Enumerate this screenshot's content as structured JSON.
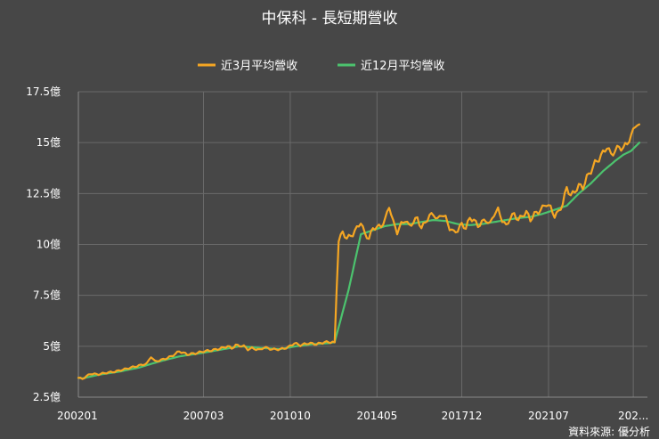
{
  "chart_data": {
    "type": "line",
    "title": "中保科 - 長短期營收",
    "source": "資料來源: 優分析",
    "legend_position": "top-center",
    "grid": true,
    "colors": {
      "background": "#474747",
      "grid": "#6a6a6a",
      "axis": "#8a8a8a"
    },
    "x_ticks": [
      "200201",
      "200703",
      "201010",
      "201405",
      "201712",
      "202107",
      "202..."
    ],
    "x_tick_index": [
      0,
      62,
      105,
      148,
      190,
      233,
      275
    ],
    "y_ticks": [
      "2.5億",
      "5億",
      "7.5億",
      "10億",
      "12.5億",
      "15億",
      "17.5億"
    ],
    "y_tick_values": [
      2.5,
      5,
      7.5,
      10,
      12.5,
      15,
      17.5
    ],
    "ylim": [
      2.5,
      17.5
    ],
    "x_count": 283,
    "series": [
      {
        "name": "近3月平均營收",
        "color": "#f5a623",
        "anchors": [
          [
            0,
            3.45
          ],
          [
            2,
            3.4
          ],
          [
            6,
            3.65
          ],
          [
            10,
            3.62
          ],
          [
            14,
            3.7
          ],
          [
            18,
            3.75
          ],
          [
            22,
            3.85
          ],
          [
            26,
            3.95
          ],
          [
            30,
            4.05
          ],
          [
            34,
            4.15
          ],
          [
            36,
            4.5
          ],
          [
            38,
            4.25
          ],
          [
            42,
            4.35
          ],
          [
            46,
            4.5
          ],
          [
            50,
            4.75
          ],
          [
            54,
            4.6
          ],
          [
            58,
            4.65
          ],
          [
            62,
            4.75
          ],
          [
            66,
            4.8
          ],
          [
            70,
            4.88
          ],
          [
            74,
            5.0
          ],
          [
            76,
            4.9
          ],
          [
            78,
            5.05
          ],
          [
            82,
            5.0
          ],
          [
            84,
            4.85
          ],
          [
            86,
            4.9
          ],
          [
            90,
            4.82
          ],
          [
            92,
            4.95
          ],
          [
            96,
            4.85
          ],
          [
            100,
            4.85
          ],
          [
            104,
            4.95
          ],
          [
            107,
            5.15
          ],
          [
            110,
            5.05
          ],
          [
            114,
            5.15
          ],
          [
            118,
            5.1
          ],
          [
            122,
            5.2
          ],
          [
            126,
            5.2
          ],
          [
            127,
            5.15
          ],
          [
            128,
            7.8
          ],
          [
            129,
            10.2
          ],
          [
            131,
            10.6
          ],
          [
            133,
            10.3
          ],
          [
            136,
            10.5
          ],
          [
            138,
            10.8
          ],
          [
            140,
            11.1
          ],
          [
            142,
            10.5
          ],
          [
            144,
            10.3
          ],
          [
            146,
            10.8
          ],
          [
            150,
            10.9
          ],
          [
            152,
            11.2
          ],
          [
            154,
            11.9
          ],
          [
            156,
            11.1
          ],
          [
            158,
            10.6
          ],
          [
            160,
            11.0
          ],
          [
            162,
            11.2
          ],
          [
            164,
            10.9
          ],
          [
            166,
            11.1
          ],
          [
            168,
            11.3
          ],
          [
            170,
            10.8
          ],
          [
            172,
            11.1
          ],
          [
            174,
            11.4
          ],
          [
            176,
            11.5
          ],
          [
            178,
            11.2
          ],
          [
            180,
            11.5
          ],
          [
            182,
            11.3
          ],
          [
            184,
            10.8
          ],
          [
            186,
            10.6
          ],
          [
            188,
            10.7
          ],
          [
            190,
            11.0
          ],
          [
            192,
            10.8
          ],
          [
            194,
            11.3
          ],
          [
            196,
            11.2
          ],
          [
            198,
            10.9
          ],
          [
            200,
            11.1
          ],
          [
            202,
            11.2
          ],
          [
            204,
            11.0
          ],
          [
            206,
            11.5
          ],
          [
            208,
            11.7
          ],
          [
            210,
            11.2
          ],
          [
            212,
            10.9
          ],
          [
            214,
            11.3
          ],
          [
            216,
            11.5
          ],
          [
            218,
            11.2
          ],
          [
            220,
            11.4
          ],
          [
            222,
            11.6
          ],
          [
            224,
            11.2
          ],
          [
            226,
            11.5
          ],
          [
            228,
            11.6
          ],
          [
            230,
            11.8
          ],
          [
            232,
            12.0
          ],
          [
            234,
            11.8
          ],
          [
            236,
            11.4
          ],
          [
            238,
            11.6
          ],
          [
            240,
            12.0
          ],
          [
            242,
            12.8
          ],
          [
            244,
            12.4
          ],
          [
            246,
            12.6
          ],
          [
            248,
            12.9
          ],
          [
            250,
            12.8
          ],
          [
            252,
            13.3
          ],
          [
            254,
            13.6
          ],
          [
            256,
            14.0
          ],
          [
            258,
            14.2
          ],
          [
            260,
            14.5
          ],
          [
            262,
            14.8
          ],
          [
            264,
            14.4
          ],
          [
            266,
            14.6
          ],
          [
            268,
            14.8
          ],
          [
            270,
            14.7
          ],
          [
            272,
            15.0
          ],
          [
            274,
            15.3
          ],
          [
            276,
            15.9
          ],
          [
            278,
            15.9
          ]
        ]
      },
      {
        "name": "近12月平均營收",
        "color": "#4cc36e",
        "anchors": [
          [
            0,
            3.45
          ],
          [
            2,
            3.42
          ],
          [
            10,
            3.6
          ],
          [
            20,
            3.75
          ],
          [
            30,
            3.95
          ],
          [
            40,
            4.25
          ],
          [
            50,
            4.5
          ],
          [
            60,
            4.65
          ],
          [
            70,
            4.82
          ],
          [
            80,
            5.0
          ],
          [
            90,
            4.92
          ],
          [
            100,
            4.86
          ],
          [
            108,
            5.0
          ],
          [
            116,
            5.1
          ],
          [
            124,
            5.15
          ],
          [
            127,
            5.2
          ],
          [
            134,
            7.8
          ],
          [
            140,
            10.5
          ],
          [
            146,
            10.7
          ],
          [
            152,
            10.9
          ],
          [
            158,
            11.0
          ],
          [
            164,
            11.0
          ],
          [
            170,
            11.1
          ],
          [
            176,
            11.2
          ],
          [
            182,
            11.15
          ],
          [
            188,
            11.0
          ],
          [
            194,
            10.95
          ],
          [
            200,
            11.0
          ],
          [
            206,
            11.1
          ],
          [
            212,
            11.2
          ],
          [
            218,
            11.3
          ],
          [
            224,
            11.35
          ],
          [
            230,
            11.5
          ],
          [
            236,
            11.7
          ],
          [
            242,
            11.9
          ],
          [
            248,
            12.5
          ],
          [
            254,
            13.0
          ],
          [
            260,
            13.6
          ],
          [
            266,
            14.1
          ],
          [
            270,
            14.4
          ],
          [
            274,
            14.6
          ],
          [
            278,
            15.0
          ]
        ]
      }
    ]
  }
}
